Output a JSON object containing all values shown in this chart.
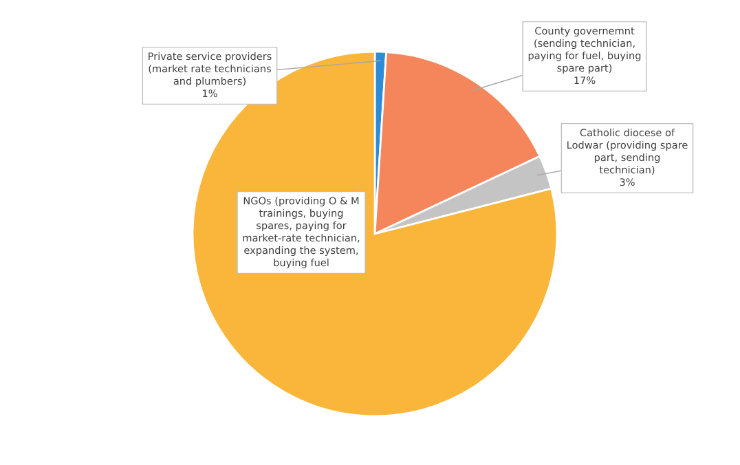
{
  "chart_data": {
    "type": "pie",
    "categories": [
      "Private service providers (market rate technicians and plumbers)",
      "County governemnt (sending technician, paying for fuel, buying spare part)",
      "Catholic diocese of Lodwar (providing spare part, sending technician)",
      "NGOs (providing O & M trainings, buying spares, paying for market-rate technician, expanding the system, buying fuel"
    ],
    "values": [
      1,
      17,
      3,
      79
    ],
    "value_labels": [
      "1%",
      "17%",
      "3%",
      null
    ],
    "colors": [
      "#2e8bd6",
      "#f5865c",
      "#c4c4c4",
      "#f9b63b"
    ],
    "legend": false
  }
}
